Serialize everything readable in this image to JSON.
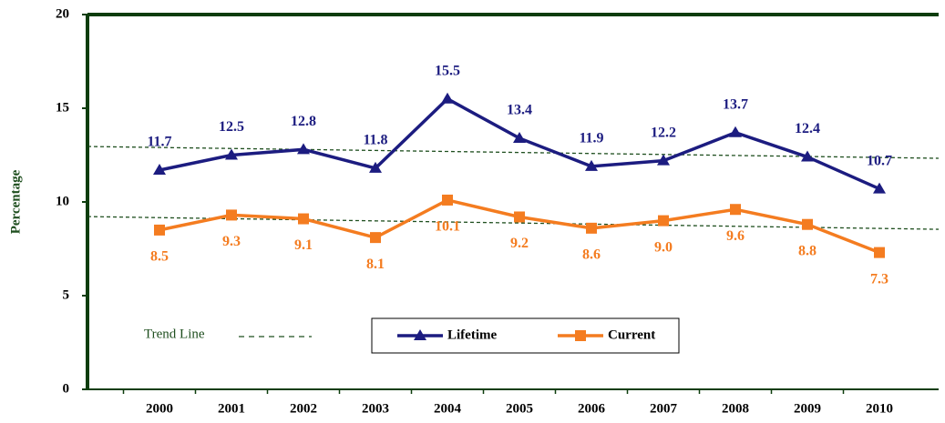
{
  "chart_data": {
    "type": "line",
    "y_label": "Percentage",
    "categories": [
      "2000",
      "2001",
      "2002",
      "2003",
      "2004",
      "2005",
      "2006",
      "2007",
      "2008",
      "2009",
      "2010"
    ],
    "series": [
      {
        "name": "Lifetime",
        "color": "#1c1c80",
        "marker": "triangle",
        "values": [
          11.7,
          12.5,
          12.8,
          11.8,
          15.5,
          13.4,
          11.9,
          12.2,
          13.7,
          12.4,
          10.7
        ],
        "value_labels": [
          "11.7",
          "12.5",
          "12.8",
          "11.8",
          "15.5",
          "13.4",
          "11.9",
          "12.2",
          "13.7",
          "12.4",
          "10.7"
        ]
      },
      {
        "name": "Current",
        "color": "#f47c20",
        "marker": "square",
        "values": [
          8.5,
          9.3,
          9.1,
          8.1,
          10.1,
          9.2,
          8.6,
          9.0,
          9.6,
          8.8,
          7.3
        ],
        "value_labels": [
          "8.5",
          "9.3",
          "9.1",
          "8.1",
          "10.1",
          "9.2",
          "8.6",
          "9.0",
          "9.6",
          "8.8",
          "7.3"
        ]
      }
    ],
    "trend_label": "Trend Line",
    "trends": [
      [
        12.96,
        12.33
      ],
      [
        9.22,
        8.54
      ]
    ],
    "trend_color": "#1f4f1f",
    "ylim": [
      0,
      20
    ],
    "yticks": [
      0,
      5,
      10,
      15,
      20
    ]
  }
}
